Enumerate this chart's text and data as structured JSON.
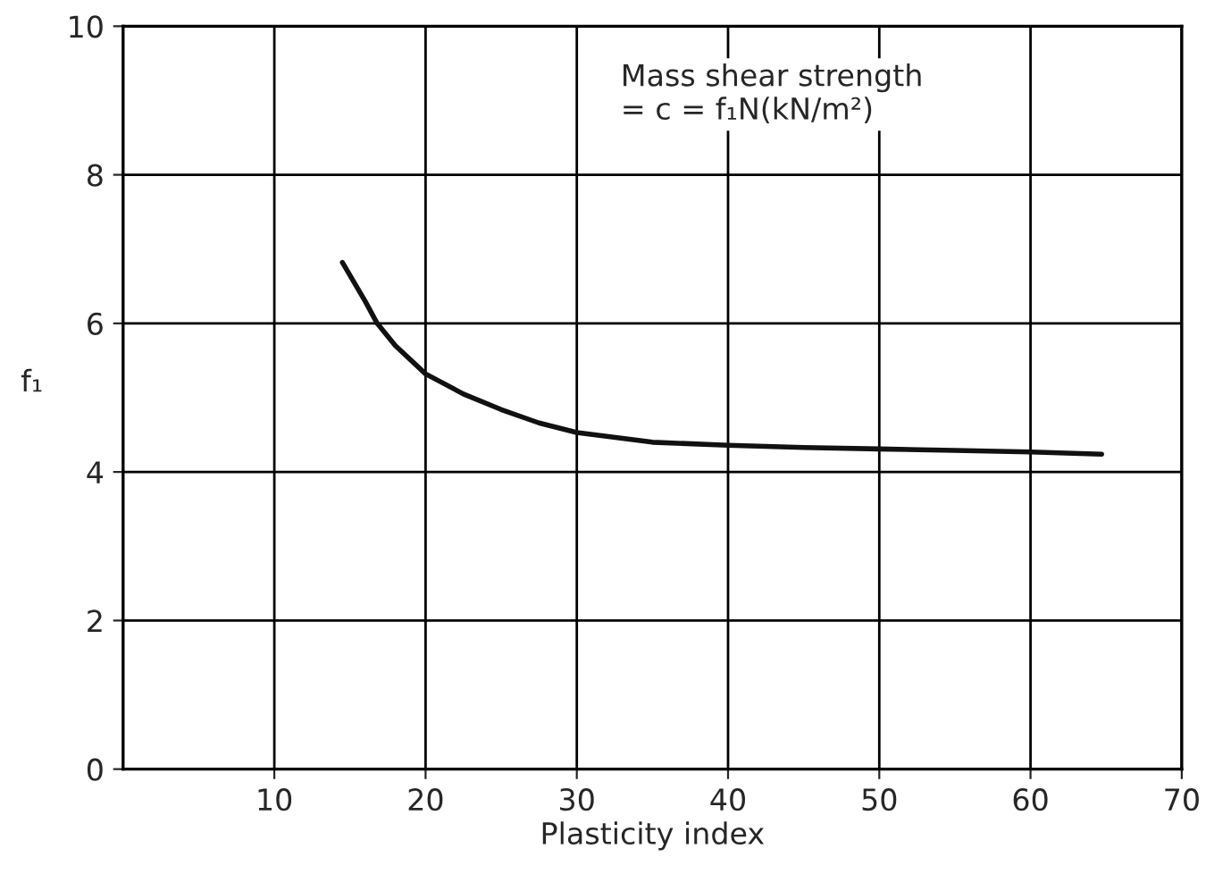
{
  "chart_data": {
    "type": "line",
    "xlabel": "Plasticity index",
    "ylabel": "f₁",
    "x": [
      14.5,
      16,
      16.8,
      18,
      20,
      22.5,
      25,
      27.5,
      30,
      35,
      40,
      45,
      50,
      55,
      60,
      64.7
    ],
    "series": [
      {
        "color": "#111111",
        "values": [
          6.82,
          6.3,
          6.0,
          5.7,
          5.32,
          5.05,
          4.84,
          4.66,
          4.53,
          4.4,
          4.36,
          4.33,
          4.31,
          4.29,
          4.27,
          4.24
        ]
      }
    ],
    "xlim": [
      0,
      70
    ],
    "xticks": [
      10,
      20,
      30,
      40,
      50,
      60,
      70
    ],
    "ylim": [
      0,
      10
    ],
    "yticks": [
      0,
      2,
      4,
      6,
      8,
      10
    ],
    "grid": true,
    "line_style": "solid",
    "marker": "none",
    "annotations": [
      "Mass shear strength\n= c = f₁N(kN/m²)"
    ]
  }
}
